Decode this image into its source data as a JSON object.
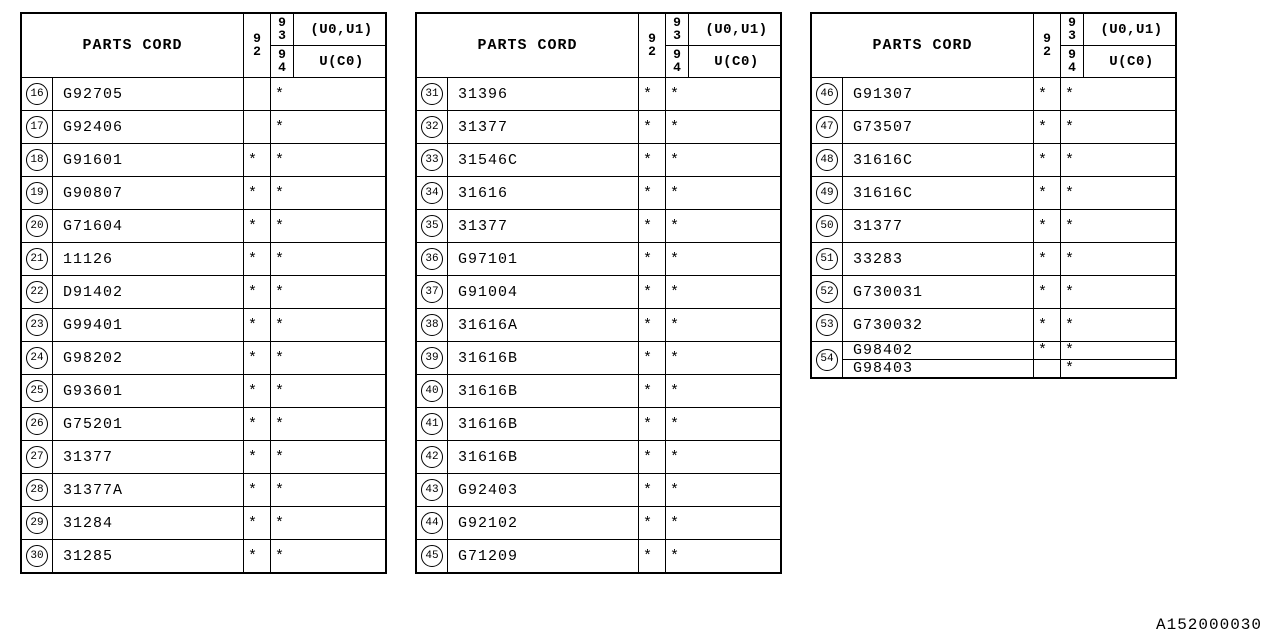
{
  "footer_id": "A152000030",
  "header": {
    "title": "PARTS CORD",
    "col_92": "92",
    "col_93": "93",
    "col_94": "94",
    "label_93": "(U0,U1)",
    "label_94": "U(C0)"
  },
  "asterisk": "*",
  "tables": [
    {
      "rows": [
        {
          "n": "16",
          "code": "G92705",
          "c1": "",
          "c2": "*"
        },
        {
          "n": "17",
          "code": "G92406",
          "c1": "",
          "c2": "*"
        },
        {
          "n": "18",
          "code": "G91601",
          "c1": "*",
          "c2": "*"
        },
        {
          "n": "19",
          "code": "G90807",
          "c1": "*",
          "c2": "*"
        },
        {
          "n": "20",
          "code": "G71604",
          "c1": "*",
          "c2": "*"
        },
        {
          "n": "21",
          "code": "11126",
          "c1": "*",
          "c2": "*"
        },
        {
          "n": "22",
          "code": "D91402",
          "c1": "*",
          "c2": "*"
        },
        {
          "n": "23",
          "code": "G99401",
          "c1": "*",
          "c2": "*"
        },
        {
          "n": "24",
          "code": "G98202",
          "c1": "*",
          "c2": "*"
        },
        {
          "n": "25",
          "code": "G93601",
          "c1": "*",
          "c2": "*"
        },
        {
          "n": "26",
          "code": "G75201",
          "c1": "*",
          "c2": "*"
        },
        {
          "n": "27",
          "code": "31377",
          "c1": "*",
          "c2": "*"
        },
        {
          "n": "28",
          "code": "31377A",
          "c1": "*",
          "c2": "*"
        },
        {
          "n": "29",
          "code": "31284",
          "c1": "*",
          "c2": "*"
        },
        {
          "n": "30",
          "code": "31285",
          "c1": "*",
          "c2": "*"
        }
      ]
    },
    {
      "rows": [
        {
          "n": "31",
          "code": "31396",
          "c1": "*",
          "c2": "*"
        },
        {
          "n": "32",
          "code": "31377",
          "c1": "*",
          "c2": "*"
        },
        {
          "n": "33",
          "code": "31546C",
          "c1": "*",
          "c2": "*"
        },
        {
          "n": "34",
          "code": "31616",
          "c1": "*",
          "c2": "*"
        },
        {
          "n": "35",
          "code": "31377",
          "c1": "*",
          "c2": "*"
        },
        {
          "n": "36",
          "code": "G97101",
          "c1": "*",
          "c2": "*"
        },
        {
          "n": "37",
          "code": "G91004",
          "c1": "*",
          "c2": "*"
        },
        {
          "n": "38",
          "code": "31616A",
          "c1": "*",
          "c2": "*"
        },
        {
          "n": "39",
          "code": "31616B",
          "c1": "*",
          "c2": "*"
        },
        {
          "n": "40",
          "code": "31616B",
          "c1": "*",
          "c2": "*"
        },
        {
          "n": "41",
          "code": "31616B",
          "c1": "*",
          "c2": "*"
        },
        {
          "n": "42",
          "code": "31616B",
          "c1": "*",
          "c2": "*"
        },
        {
          "n": "43",
          "code": "G92403",
          "c1": "*",
          "c2": "*"
        },
        {
          "n": "44",
          "code": "G92102",
          "c1": "*",
          "c2": "*"
        },
        {
          "n": "45",
          "code": "G71209",
          "c1": "*",
          "c2": "*"
        }
      ]
    },
    {
      "rows": [
        {
          "n": "46",
          "code": "G91307",
          "c1": "*",
          "c2": "*"
        },
        {
          "n": "47",
          "code": "G73507",
          "c1": "*",
          "c2": "*"
        },
        {
          "n": "48",
          "code": "31616C",
          "c1": "*",
          "c2": "*"
        },
        {
          "n": "49",
          "code": "31616C",
          "c1": "*",
          "c2": "*"
        },
        {
          "n": "50",
          "code": "31377",
          "c1": "*",
          "c2": "*"
        },
        {
          "n": "51",
          "code": "33283",
          "c1": "*",
          "c2": "*"
        },
        {
          "n": "52",
          "code": "G730031",
          "c1": "*",
          "c2": "*"
        },
        {
          "n": "53",
          "code": "G730032",
          "c1": "*",
          "c2": "*"
        },
        {
          "n": "54",
          "code": "G98402",
          "c1": "*",
          "c2": "*",
          "span": 2
        },
        {
          "n": "",
          "code": "G98403",
          "c1": "",
          "c2": "*",
          "skipn": true
        }
      ]
    }
  ]
}
